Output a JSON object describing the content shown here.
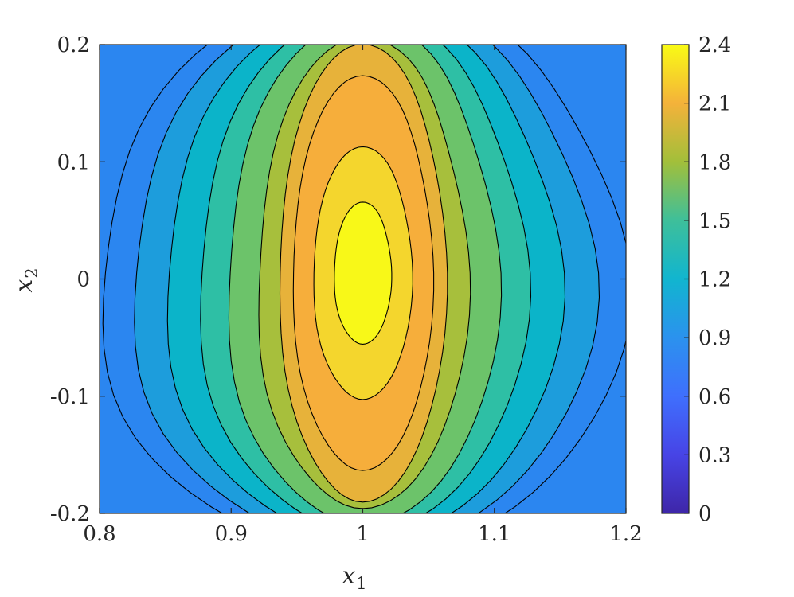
{
  "chart_data": {
    "type": "contour",
    "x_range": [
      0.8,
      1.2
    ],
    "y_range": [
      -0.2,
      0.2
    ],
    "x_ticks": [
      "0.8",
      "0.9",
      "1",
      "1.1",
      "1.2"
    ],
    "y_ticks": [
      "-0.2",
      "-0.1",
      "0",
      "0.1",
      "0.2"
    ],
    "xlabel": {
      "base": "x",
      "sub": "1"
    },
    "ylabel": {
      "base": "x",
      "sub": "2"
    },
    "colorbar": {
      "range": [
        0,
        2.4
      ],
      "ticks": [
        "0",
        "0.3",
        "0.6",
        "0.9",
        "1.2",
        "1.5",
        "1.8",
        "2.1",
        "2.4"
      ],
      "colormap": "parula"
    },
    "contour_levels": [
      0.9,
      1.05,
      1.2,
      1.35,
      1.5,
      1.65,
      1.8,
      1.95,
      2.1,
      2.25,
      2.4
    ],
    "peak": {
      "x1": 1.0,
      "x2": 0.0,
      "value": 2.4
    },
    "grid": false,
    "colors": {
      "level_0_9": "#2b86f0",
      "level_1_05": "#1d9ddc",
      "level_1_2": "#0bb4c9",
      "level_1_35": "#2ebfa5",
      "level_1_5": "#6cc36a",
      "level_1_65": "#a7bf3c",
      "level_1_8": "#e7b23a",
      "level_2_1": "#f6ae3b",
      "level_2_25": "#f4d62d",
      "level_2_4": "#f8f818",
      "contour_line": "#000000"
    }
  }
}
